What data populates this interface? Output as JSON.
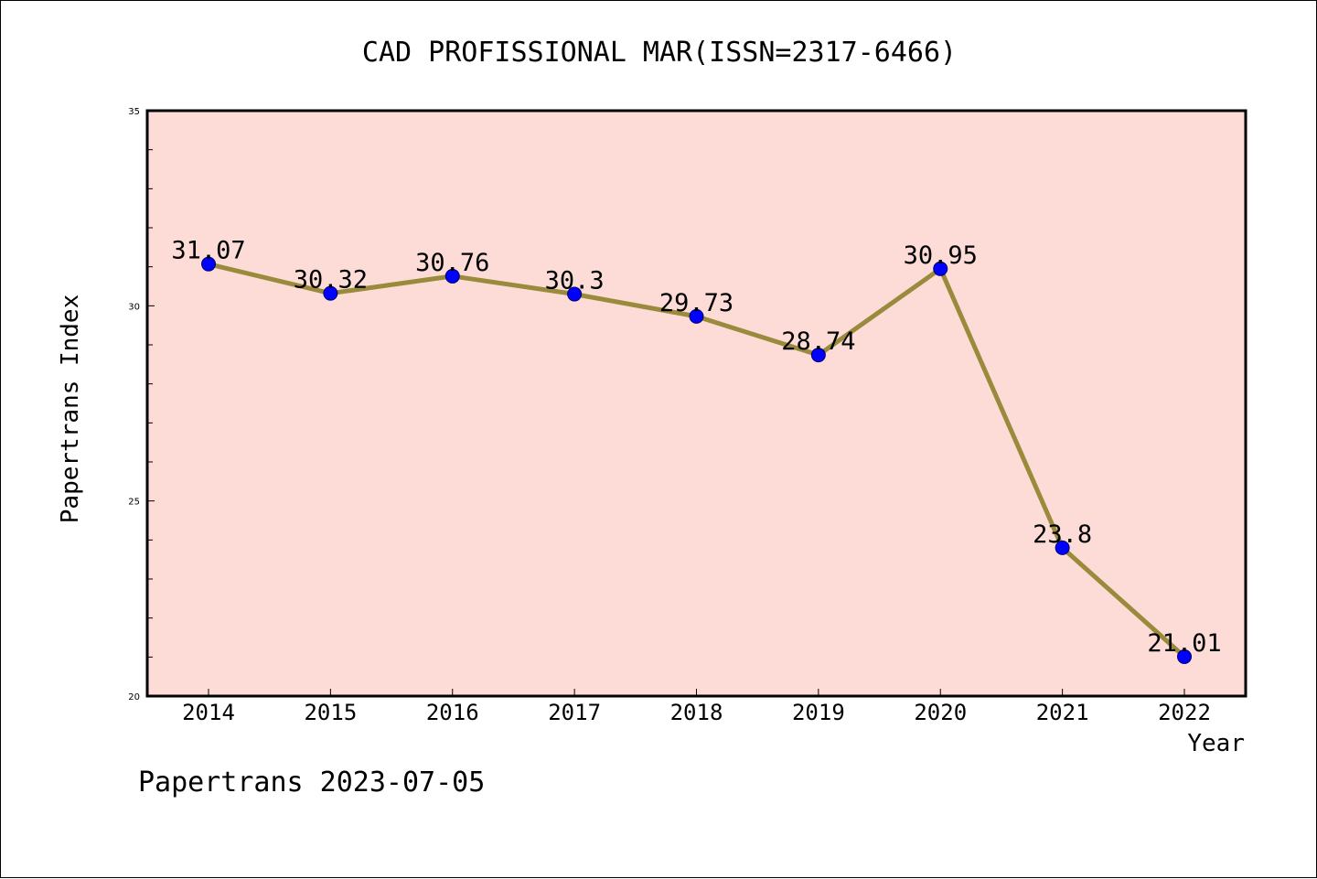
{
  "chart_data": {
    "type": "line",
    "title": "CAD PROFISSIONAL MAR(ISSN=2317-6466)",
    "xlabel": "Year",
    "ylabel": "Papertrans Index",
    "categories": [
      "2014",
      "2015",
      "2016",
      "2017",
      "2018",
      "2019",
      "2020",
      "2021",
      "2022"
    ],
    "series": [
      {
        "values": [
          31.07,
          30.32,
          30.76,
          30.3,
          29.73,
          28.74,
          30.95,
          23.8,
          21.01
        ],
        "labels": [
          "31.07",
          "30.32",
          "30.76",
          "30.3",
          "29.73",
          "28.74",
          "30.95",
          "23.8",
          "21.01"
        ]
      }
    ],
    "ylim": [
      20,
      35
    ],
    "yticks": [
      "20",
      "25",
      "30",
      "35"
    ],
    "grid": false,
    "legend": "none",
    "colors": {
      "plot_background": "#fddcd8",
      "line": "#9a8a3c",
      "marker": "#0000ff",
      "axis": "#000000"
    }
  },
  "footer": {
    "text": "Papertrans 2023-07-05"
  }
}
